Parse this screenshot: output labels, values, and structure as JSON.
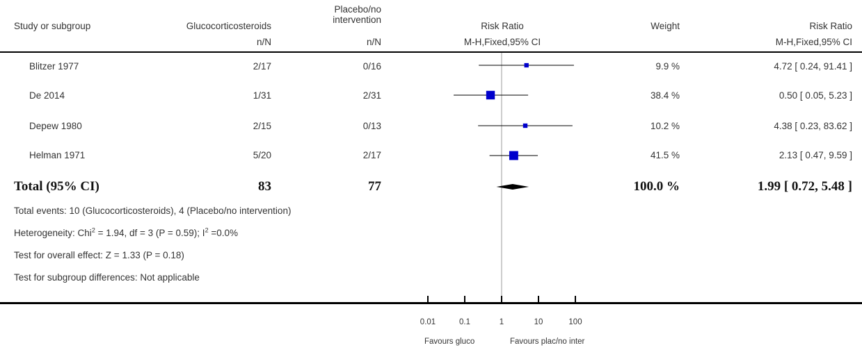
{
  "header": {
    "study_col": "Study or subgroup",
    "exp_col": "Glucocorticosteroids",
    "ctrl_col": "Placebo/no\nintervention",
    "plot_col": "Risk Ratio",
    "weight_col": "Weight",
    "ratio_col": "Risk Ratio",
    "exp_sub": "n/N",
    "ctrl_sub": "n/N",
    "plot_sub": "M-H,Fixed,95% CI",
    "ratio_sub": "M-H,Fixed,95% CI"
  },
  "rows": [
    {
      "study": "Blitzer 1977",
      "exp": "2/17",
      "ctrl": "0/16",
      "weight": "9.9 %",
      "ci_text": "4.72 [ 0.24, 91.41 ]"
    },
    {
      "study": "De 2014",
      "exp": "1/31",
      "ctrl": "2/31",
      "weight": "38.4 %",
      "ci_text": "0.50 [ 0.05, 5.23 ]"
    },
    {
      "study": "Depew 1980",
      "exp": "2/15",
      "ctrl": "0/13",
      "weight": "10.2 %",
      "ci_text": "4.38 [ 0.23, 83.62 ]"
    },
    {
      "study": "Helman 1971",
      "exp": "5/20",
      "ctrl": "2/17",
      "weight": "41.5 %",
      "ci_text": "2.13 [ 0.47, 9.59 ]"
    }
  ],
  "total": {
    "label": "Total (95% CI)",
    "exp": "83",
    "ctrl": "77",
    "weight": "100.0 %",
    "ci_text": "1.99 [ 0.72, 5.48 ]"
  },
  "notes": {
    "events": "Total events: 10 (Glucocorticosteroids), 4 (Placebo/no intervention)",
    "heterogeneity_a": "Heterogeneity: Chi",
    "heterogeneity_b": " = 1.94, df = 3 (P = 0.59); I",
    "heterogeneity_c": " =0.0%",
    "sup2": "2",
    "overall": "Test for overall effect: Z = 1.33 (P = 0.18)",
    "subgroup": "Test for subgroup differences: Not applicable"
  },
  "axis": {
    "favours_left": "Favours gluco",
    "favours_right": "Favours plac/no inter"
  },
  "chart_data": {
    "type": "forest",
    "xscale": "log",
    "xlim": [
      0.01,
      100
    ],
    "ticks": [
      0.01,
      0.1,
      1,
      10,
      100
    ],
    "tick_labels": [
      "0.01",
      "0.1",
      "1",
      "10",
      "100"
    ],
    "marker_color": "#0000cc",
    "studies": [
      {
        "name": "Blitzer 1977",
        "rr": 4.72,
        "lo": 0.24,
        "hi": 91.41,
        "weight": 9.9
      },
      {
        "name": "De 2014",
        "rr": 0.5,
        "lo": 0.05,
        "hi": 5.23,
        "weight": 38.4
      },
      {
        "name": "Depew 1980",
        "rr": 4.38,
        "lo": 0.23,
        "hi": 83.62,
        "weight": 10.2
      },
      {
        "name": "Helman 1971",
        "rr": 2.13,
        "lo": 0.47,
        "hi": 9.59,
        "weight": 41.5
      }
    ],
    "pooled": {
      "rr": 1.99,
      "lo": 0.72,
      "hi": 5.48
    }
  }
}
